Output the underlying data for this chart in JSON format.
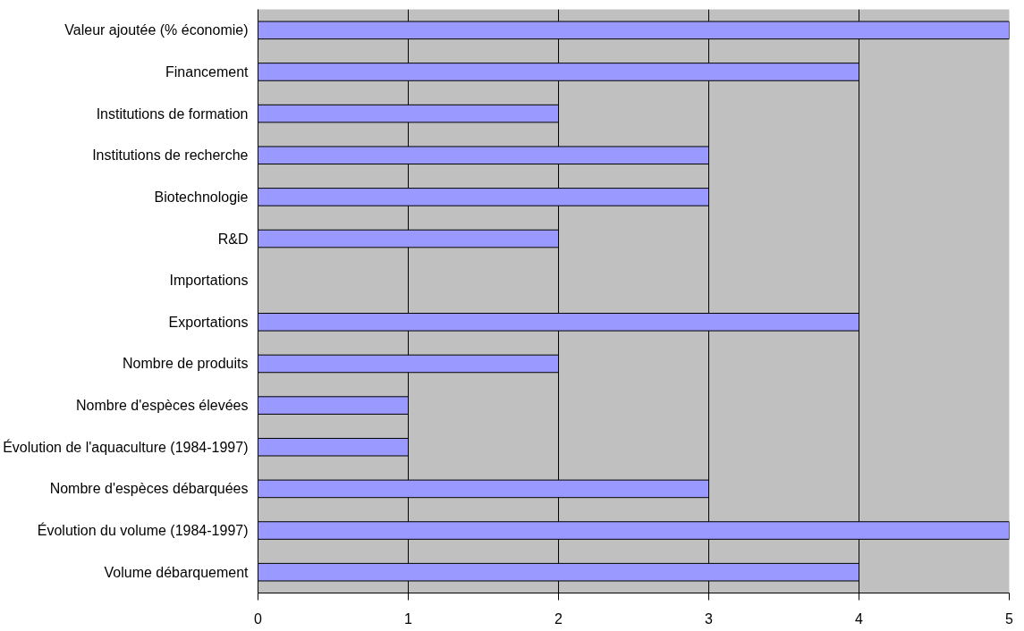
{
  "chart_data": {
    "type": "bar",
    "orientation": "horizontal",
    "categories": [
      "Valeur ajoutée (% économie)",
      "Financement",
      "Institutions de formation",
      "Institutions de recherche",
      "Biotechnologie",
      "R&D",
      "Importations",
      "Exportations",
      "Nombre de produits",
      "Nombre d'espèces élevées",
      "Évolution de l'aquaculture (1984-1997)",
      "Nombre d'espèces débarquées",
      "Évolution du volume (1984-1997)",
      "Volume débarquement"
    ],
    "values": [
      5,
      4,
      2,
      3,
      3,
      2,
      null,
      4,
      2,
      1,
      1,
      3,
      5,
      4
    ],
    "color": "#9999ff",
    "xlim": [
      0,
      5
    ],
    "xticks": [
      0,
      1,
      2,
      3,
      4,
      5
    ],
    "grid": "x"
  }
}
